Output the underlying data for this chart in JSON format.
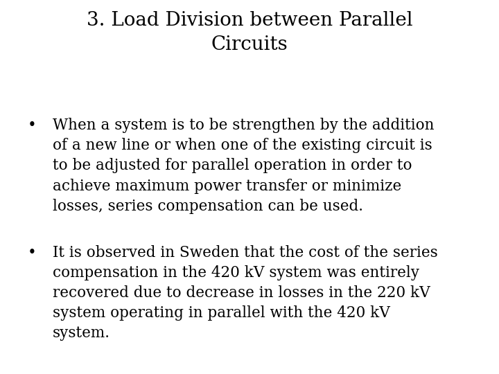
{
  "title_line1": "3. Load Division between Parallel",
  "title_line2": "Circuits",
  "bullet1_lines": [
    "When a system is to be strengthen by the addition",
    "of a new line or when one of the existing circuit is",
    "to be adjusted for parallel operation in order to",
    "achieve maximum power transfer or minimize",
    "losses, series compensation can be used."
  ],
  "bullet2_lines": [
    "It is observed in Sweden that the cost of the series",
    "compensation in the 420 kV system was entirely",
    "recovered due to decrease in losses in the 220 kV",
    "system operating in parallel with the 420 kV",
    "system."
  ],
  "background_color": "#ffffff",
  "text_color": "#000000",
  "title_fontsize": 20,
  "body_fontsize": 15.5,
  "font_family": "DejaVu Serif"
}
